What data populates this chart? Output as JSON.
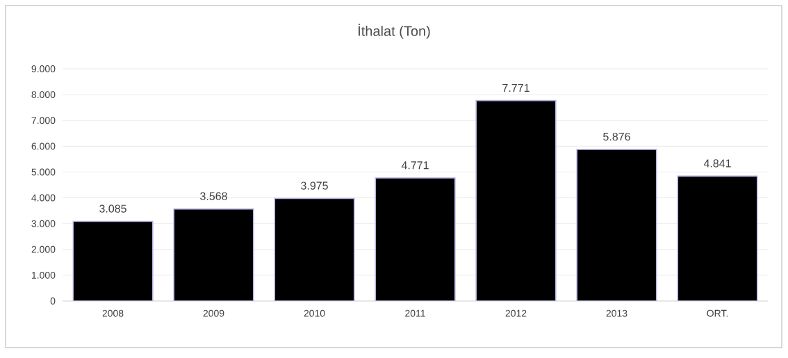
{
  "chart_data": {
    "type": "bar",
    "title": "İthalat (Ton)",
    "categories": [
      "2008",
      "2009",
      "2010",
      "2011",
      "2012",
      "2013",
      "ORT."
    ],
    "values": [
      3085,
      3568,
      3975,
      4771,
      7771,
      5876,
      4841
    ],
    "value_labels": [
      "3.085",
      "3.568",
      "3.975",
      "4.771",
      "7.771",
      "5.876",
      "4.841"
    ],
    "color": "#000000",
    "ylim": [
      0,
      9000
    ],
    "yticks": [
      0,
      {
        "value": 1000,
        "label": "1.000"
      },
      {
        "value": 2000,
        "label": "2.000"
      },
      {
        "value": 3000,
        "label": "3.000"
      },
      {
        "value": 4000,
        "label": "4.000"
      },
      {
        "value": 5000,
        "label": "5.000"
      },
      {
        "value": 6000,
        "label": "6.000"
      },
      {
        "value": 7000,
        "label": "7.000"
      },
      {
        "value": 8000,
        "label": "8.000"
      },
      {
        "value": 9000,
        "label": "9.000"
      }
    ],
    "grid": "y"
  }
}
